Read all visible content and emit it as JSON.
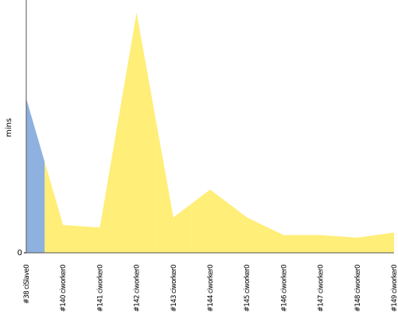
{
  "chart_data": {
    "type": "area",
    "y_label": "mins",
    "categories": [
      "#38 ciSlave0",
      "#140 ciworker0",
      "#141 ciworker0",
      "#142 ciworker0",
      "#143 ciworker0",
      "#144 ciworker0",
      "#145 ciworker0",
      "#146 ciworker0",
      "#147 ciworker0",
      "#148 ciworker0",
      "#149 ciworker0"
    ],
    "values": [
      6.1,
      1.1,
      1.0,
      9.5,
      1.4,
      2.5,
      1.4,
      0.7,
      0.7,
      0.6,
      0.8
    ],
    "colors": [
      "#8fb1e0",
      "#ffee77",
      "#ffee77",
      "#ffee77",
      "#ffee77",
      "#ffee77",
      "#ffee77",
      "#ffee77",
      "#ffee77",
      "#ffee77",
      "#ffee77"
    ],
    "ylim": [
      0,
      10
    ],
    "yticks": [
      0
    ]
  }
}
